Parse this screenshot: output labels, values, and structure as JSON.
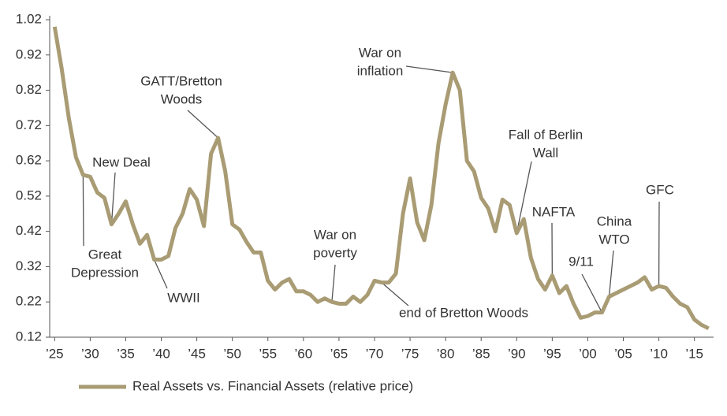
{
  "chart_data": {
    "type": "line",
    "x": [
      1925,
      1926,
      1927,
      1928,
      1929,
      1930,
      1931,
      1932,
      1933,
      1934,
      1935,
      1936,
      1937,
      1938,
      1939,
      1940,
      1941,
      1942,
      1943,
      1944,
      1945,
      1946,
      1947,
      1948,
      1949,
      1950,
      1951,
      1952,
      1953,
      1954,
      1955,
      1956,
      1957,
      1958,
      1959,
      1960,
      1961,
      1962,
      1963,
      1964,
      1965,
      1966,
      1967,
      1968,
      1969,
      1970,
      1971,
      1972,
      1973,
      1974,
      1975,
      1976,
      1977,
      1978,
      1979,
      1980,
      1981,
      1982,
      1983,
      1984,
      1985,
      1986,
      1987,
      1988,
      1989,
      1990,
      1991,
      1992,
      1993,
      1994,
      1995,
      1996,
      1997,
      1998,
      1999,
      2000,
      2001,
      2002,
      2003,
      2004,
      2005,
      2006,
      2007,
      2008,
      2009,
      2010,
      2011,
      2012,
      2013,
      2014,
      2015,
      2016,
      2017
    ],
    "series": [
      {
        "name": "Real Assets vs. Financial Assets (relative price)",
        "color": "#a99c74",
        "values": [
          1.0,
          0.88,
          0.74,
          0.63,
          0.58,
          0.575,
          0.53,
          0.515,
          0.44,
          0.47,
          0.505,
          0.44,
          0.385,
          0.41,
          0.34,
          0.34,
          0.35,
          0.43,
          0.47,
          0.54,
          0.51,
          0.435,
          0.64,
          0.685,
          0.59,
          0.44,
          0.425,
          0.39,
          0.36,
          0.36,
          0.28,
          0.255,
          0.275,
          0.285,
          0.25,
          0.25,
          0.24,
          0.22,
          0.23,
          0.22,
          0.215,
          0.215,
          0.235,
          0.22,
          0.24,
          0.28,
          0.275,
          0.275,
          0.3,
          0.47,
          0.57,
          0.445,
          0.395,
          0.495,
          0.67,
          0.78,
          0.87,
          0.82,
          0.62,
          0.59,
          0.515,
          0.485,
          0.42,
          0.51,
          0.495,
          0.415,
          0.455,
          0.345,
          0.285,
          0.255,
          0.295,
          0.245,
          0.265,
          0.215,
          0.175,
          0.18,
          0.19,
          0.19,
          0.235,
          0.245,
          0.255,
          0.265,
          0.275,
          0.29,
          0.255,
          0.265,
          0.26,
          0.235,
          0.215,
          0.205,
          0.17,
          0.155,
          0.145
        ]
      }
    ],
    "xlim": [
      1924.3,
      2017.7
    ],
    "xticks": [
      {
        "value": 1925,
        "label": "’25"
      },
      {
        "value": 1930,
        "label": "’30"
      },
      {
        "value": 1935,
        "label": "’35"
      },
      {
        "value": 1940,
        "label": "’40"
      },
      {
        "value": 1945,
        "label": "’45"
      },
      {
        "value": 1950,
        "label": "’50"
      },
      {
        "value": 1955,
        "label": "’55"
      },
      {
        "value": 1960,
        "label": "’60"
      },
      {
        "value": 1965,
        "label": "’65"
      },
      {
        "value": 1970,
        "label": "’70"
      },
      {
        "value": 1975,
        "label": "’75"
      },
      {
        "value": 1980,
        "label": "’80"
      },
      {
        "value": 1985,
        "label": "’85"
      },
      {
        "value": 1990,
        "label": "’90"
      },
      {
        "value": 1995,
        "label": "’95"
      },
      {
        "value": 2000,
        "label": "’00"
      },
      {
        "value": 2005,
        "label": "’05"
      },
      {
        "value": 2010,
        "label": "’10"
      },
      {
        "value": 2015,
        "label": "’15"
      }
    ],
    "ylim": [
      0.12,
      1.02
    ],
    "yticks": [
      0.12,
      0.22,
      0.32,
      0.42,
      0.52,
      0.62,
      0.72,
      0.82,
      0.92,
      1.02
    ],
    "annotations": [
      {
        "lines": [
          "Great",
          "Depression"
        ],
        "x": 1929
      },
      {
        "lines": [
          "New Deal"
        ],
        "x": 1933
      },
      {
        "lines": [
          "WWII"
        ],
        "x": 1939
      },
      {
        "lines": [
          "GATT/Bretton",
          "Woods"
        ],
        "x": 1948
      },
      {
        "lines": [
          "War on",
          "poverty"
        ],
        "x": 1964
      },
      {
        "lines": [
          "end of Bretton Woods"
        ],
        "x": 1971
      },
      {
        "lines": [
          "War on",
          "inflation"
        ],
        "x": 1981
      },
      {
        "lines": [
          "Fall of Berlin",
          "Wall"
        ],
        "x": 1990
      },
      {
        "lines": [
          "NAFTA"
        ],
        "x": 1995
      },
      {
        "lines": [
          "9/11"
        ],
        "x": 2002
      },
      {
        "lines": [
          "China",
          "WTO"
        ],
        "x": 2003
      },
      {
        "lines": [
          "GFC"
        ],
        "x": 2010
      }
    ]
  }
}
